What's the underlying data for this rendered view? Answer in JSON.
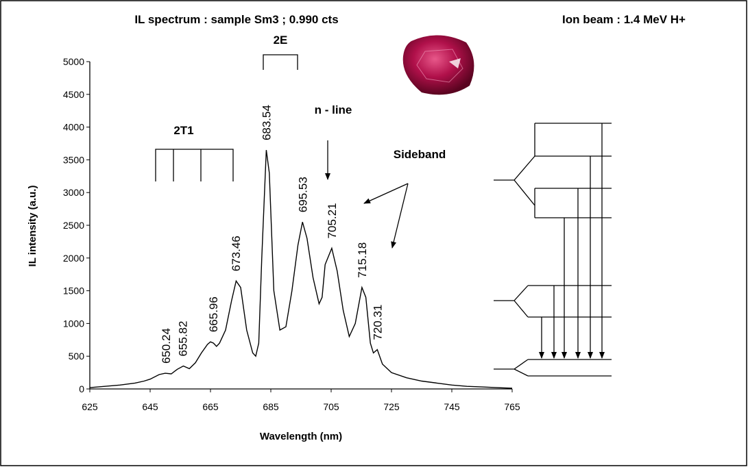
{
  "chart_data": {
    "type": "line",
    "title": "IL spectrum : sample Sm3 ; 0.990 cts",
    "subtitle": "Ion beam : 1.4 MeV  H+",
    "x_label": "Wavelength (nm)",
    "y_label": "IL intensity (a.u.)",
    "x": [
      625,
      630,
      635,
      640,
      643,
      645,
      648,
      650,
      652,
      654,
      656,
      658,
      660,
      662,
      664,
      665,
      666,
      667,
      668,
      670,
      672,
      673.5,
      675,
      677,
      679,
      680,
      681,
      682,
      683.5,
      684.5,
      686,
      688,
      690,
      692,
      694,
      695.5,
      697,
      699,
      701,
      702,
      703,
      705.2,
      707,
      709,
      711,
      713,
      715.2,
      716.5,
      718,
      719,
      720.3,
      722,
      725,
      730,
      735,
      740,
      745,
      750,
      755,
      760,
      765
    ],
    "values": [
      20,
      40,
      60,
      90,
      120,
      150,
      220,
      240,
      230,
      300,
      350,
      310,
      400,
      550,
      680,
      720,
      700,
      650,
      700,
      900,
      1350,
      1650,
      1550,
      900,
      550,
      500,
      700,
      2000,
      3650,
      3300,
      1500,
      900,
      950,
      1500,
      2200,
      2550,
      2300,
      1700,
      1300,
      1400,
      1900,
      2150,
      1800,
      1200,
      800,
      1000,
      1550,
      1400,
      700,
      550,
      600,
      380,
      250,
      170,
      120,
      90,
      60,
      40,
      30,
      20,
      10
    ],
    "color": "#000000",
    "xlim": [
      625,
      765
    ],
    "xticks": [
      625,
      645,
      665,
      685,
      705,
      725,
      745,
      765
    ],
    "ylim": [
      0,
      5000
    ],
    "yticks": [
      0,
      500,
      1000,
      1500,
      2000,
      2500,
      3000,
      3500,
      4000,
      4500,
      5000
    ],
    "grid": false,
    "peak_labels": [
      {
        "x": 650.24,
        "y": 240
      },
      {
        "x": 655.82,
        "y": 350
      },
      {
        "x": 665.96,
        "y": 720
      },
      {
        "x": 673.46,
        "y": 1650
      },
      {
        "x": 683.54,
        "y": 3650
      },
      {
        "x": 695.53,
        "y": 2550
      },
      {
        "x": 705.21,
        "y": 2150
      },
      {
        "x": 715.18,
        "y": 1550
      },
      {
        "x": 720.31,
        "y": 600
      }
    ],
    "annotations": [
      "2T1",
      "2E",
      "n - line",
      "Sideband"
    ]
  }
}
